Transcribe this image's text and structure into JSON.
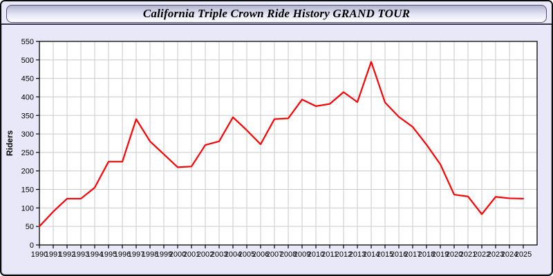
{
  "window": {
    "title": "California Triple Crown Ride History GRAND TOUR"
  },
  "colors": {
    "window_background": "#e8e8f8",
    "window_border": "#0a0a0a",
    "titlebar_gradient_top": "#b2b2cf",
    "titlebar_gradient_bottom": "#fdfdff",
    "plot_background": "#ffffff",
    "grid_color": "#c9c9c9",
    "axis_color": "#000000",
    "line_color": "#ff0000",
    "text_color": "#000000"
  },
  "chart_data": {
    "type": "line",
    "title": "California Triple Crown Ride History GRAND TOUR",
    "xlabel": "",
    "ylabel": "Riders",
    "x": [
      1990,
      1991,
      1992,
      1993,
      1994,
      1995,
      1996,
      1997,
      1998,
      1999,
      2000,
      2001,
      2002,
      2003,
      2004,
      2005,
      2006,
      2007,
      2008,
      2009,
      2010,
      2011,
      2012,
      2013,
      2014,
      2015,
      2016,
      2017,
      2018,
      2019,
      2020,
      2021,
      2022,
      2023,
      2024,
      2025
    ],
    "series": [
      {
        "name": "Riders",
        "color": "#ff0000",
        "values": [
          50,
          90,
          125,
          125,
          155,
          225,
          225,
          340,
          280,
          245,
          210,
          212,
          270,
          280,
          345,
          310,
          272,
          340,
          342,
          393,
          375,
          381,
          413,
          386,
          495,
          385,
          346,
          319,
          271,
          218,
          136,
          131,
          83,
          130,
          126,
          125
        ]
      }
    ],
    "ylim": [
      0,
      550
    ],
    "yticks": [
      0,
      50,
      100,
      150,
      200,
      250,
      300,
      350,
      400,
      450,
      500,
      550
    ],
    "grid": true,
    "legend_position": "none"
  }
}
